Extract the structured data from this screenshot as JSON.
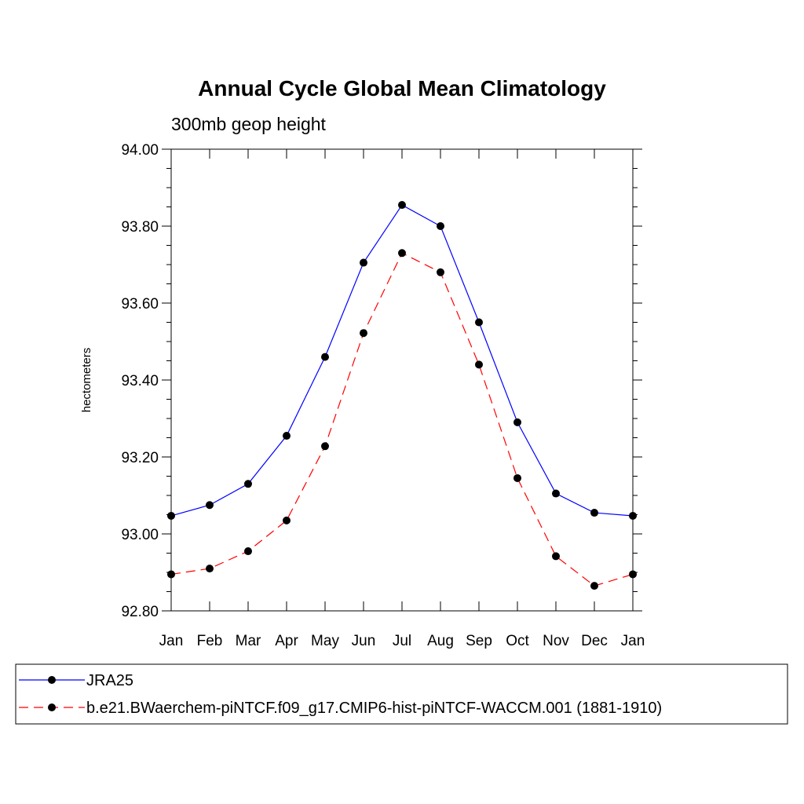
{
  "chart_data": {
    "type": "line",
    "title": "Annual Cycle Global Mean Climatology",
    "subtitle": "300mb geop height",
    "ylabel": "hectometers",
    "xlabel": "",
    "categories": [
      "Jan",
      "Feb",
      "Mar",
      "Apr",
      "May",
      "Jun",
      "Jul",
      "Aug",
      "Sep",
      "Oct",
      "Nov",
      "Dec",
      "Jan"
    ],
    "ylim": [
      92.8,
      94.0
    ],
    "y_ticks": [
      "92.80",
      "93.00",
      "93.20",
      "93.40",
      "93.60",
      "93.80",
      "94.00"
    ],
    "grid": false,
    "legend_position": "bottom",
    "series": [
      {
        "name": "JRA25",
        "color": "#0000ff",
        "dash": "solid",
        "marker": "filled-circle",
        "values": [
          93.047,
          93.075,
          93.13,
          93.255,
          93.46,
          93.705,
          93.855,
          93.8,
          93.55,
          93.29,
          93.105,
          93.055,
          93.047
        ]
      },
      {
        "name": "b.e21.BWaerchem-piNTCF.f09_g17.CMIP6-hist-piNTCF-WACCM.001 (1881-1910)",
        "color": "#ff0000",
        "dash": "dashed",
        "marker": "filled-circle",
        "values": [
          92.895,
          92.91,
          92.955,
          93.035,
          93.228,
          93.522,
          93.73,
          93.68,
          93.44,
          93.145,
          92.942,
          92.865,
          92.895
        ]
      }
    ]
  }
}
